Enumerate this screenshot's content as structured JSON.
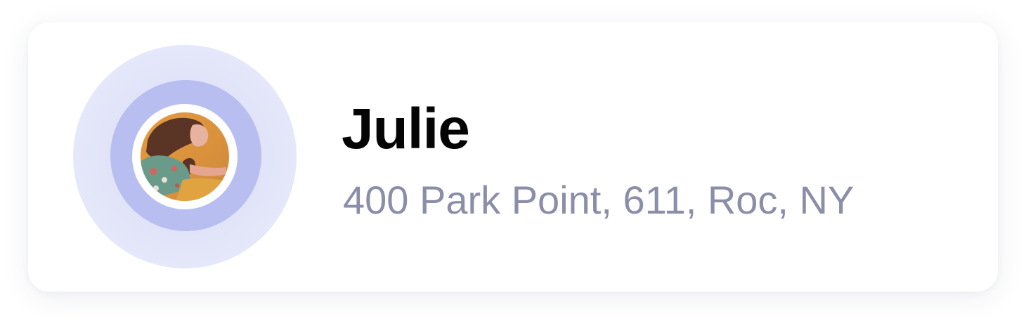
{
  "contact": {
    "name": "Julie",
    "address": "400 Park Point, 611, Roc, NY"
  },
  "avatar": {
    "icon": "avatar-photo"
  },
  "colors": {
    "halo_outer": "#e3e6f9",
    "halo_inner": "#b8bff0",
    "address_text": "#8a8ea8",
    "name_text": "#050505"
  }
}
